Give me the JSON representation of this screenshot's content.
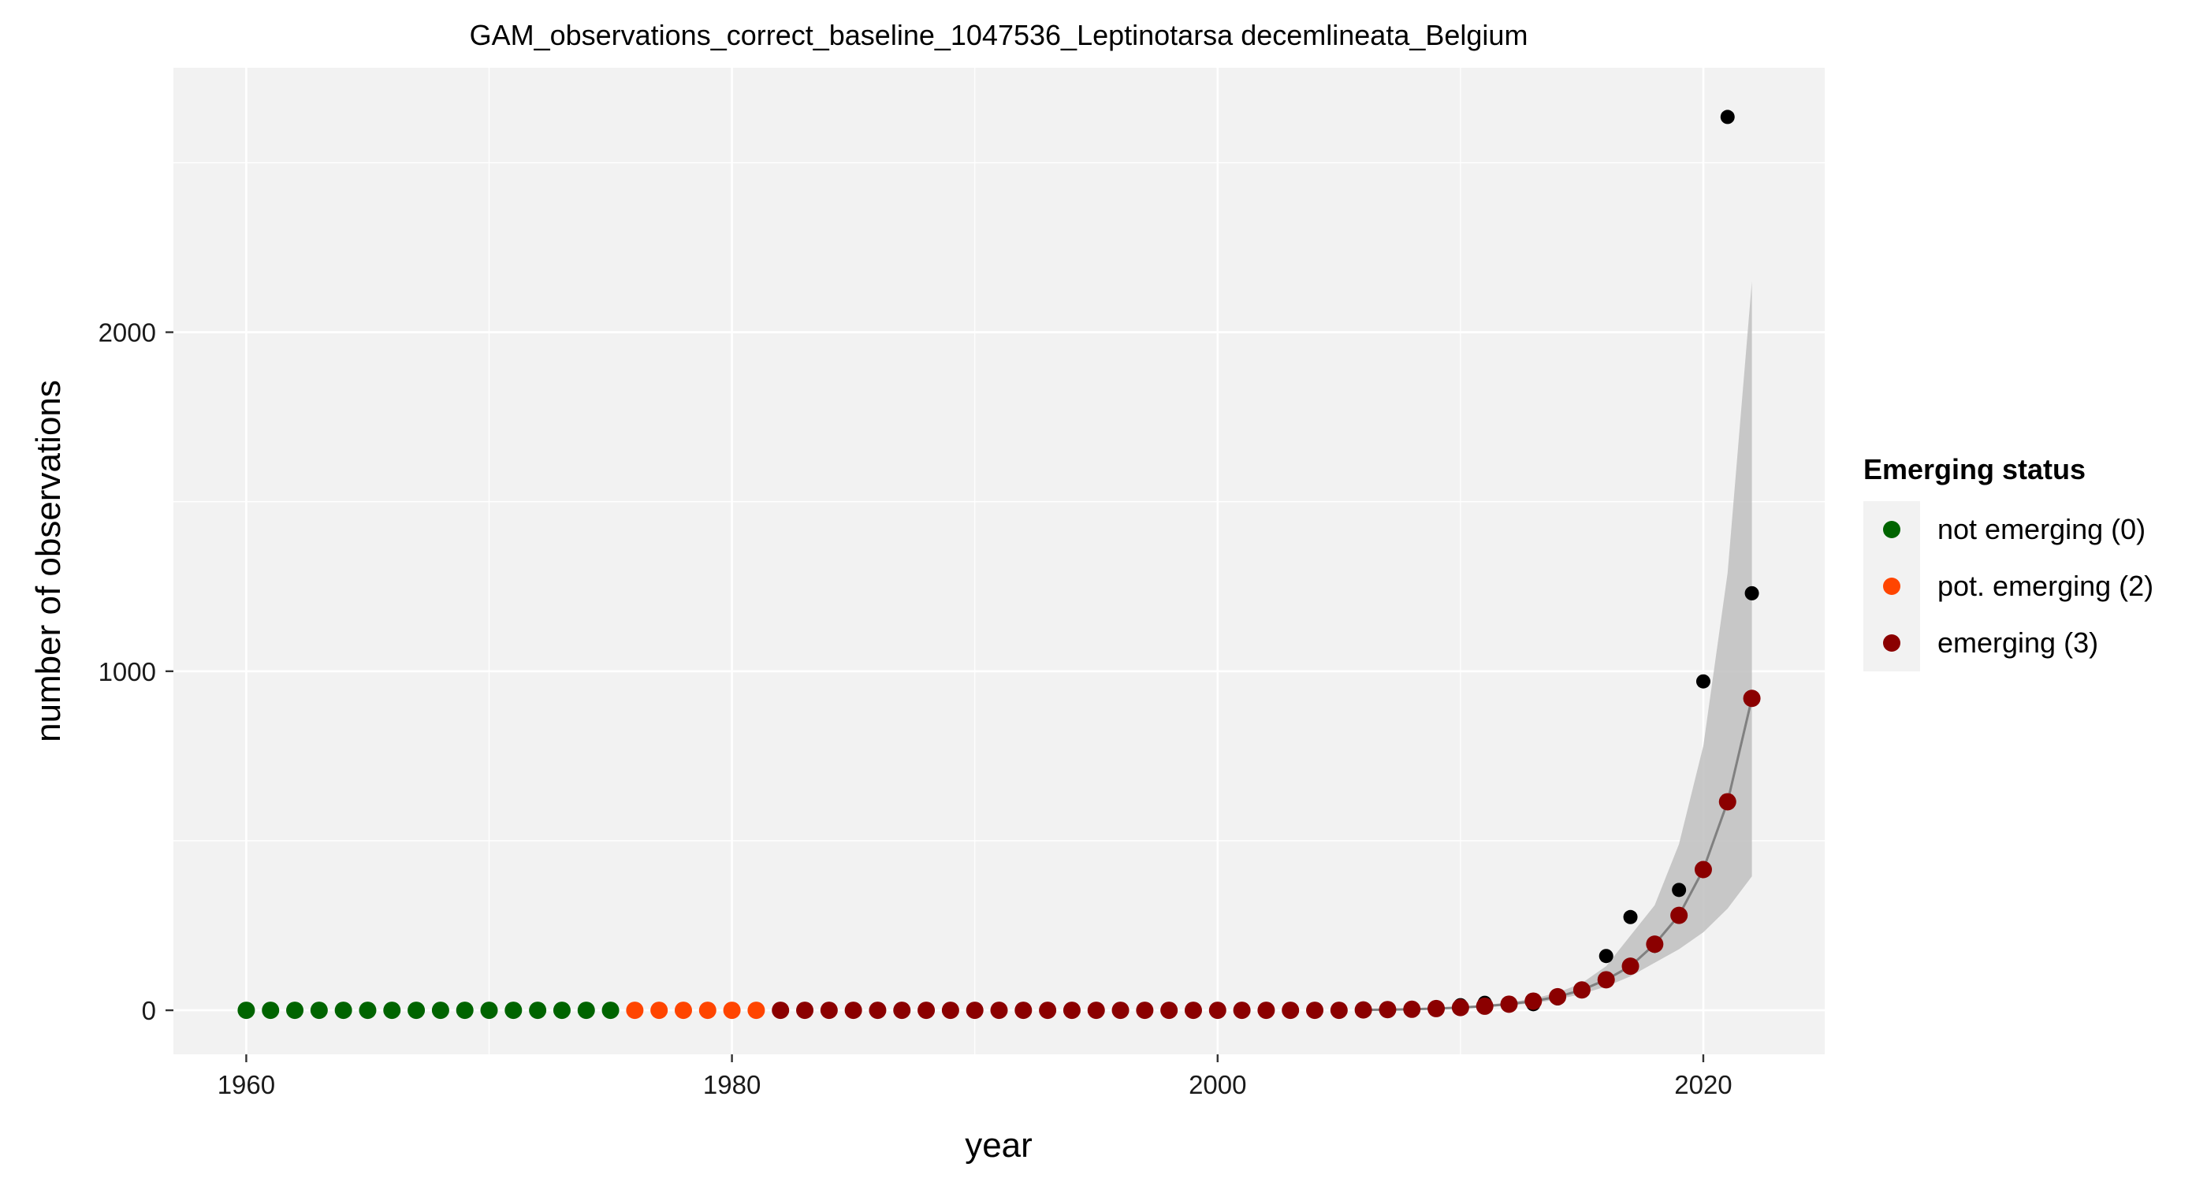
{
  "chart_data": {
    "type": "scatter",
    "title": "GAM_observations_correct_baseline_1047536_Leptinotarsa decemlineata_Belgium",
    "xlabel": "year",
    "ylabel": "number of observations",
    "xlim": [
      1957,
      2025
    ],
    "ylim": [
      -130,
      2780
    ],
    "x_ticks": [
      1960,
      1980,
      2000,
      2020
    ],
    "x_tick_labels": [
      "1960",
      "1980",
      "2000",
      "2020"
    ],
    "y_ticks": [
      0,
      1000,
      2000
    ],
    "y_tick_labels": [
      "0",
      "1000",
      "2000"
    ],
    "grid": true,
    "legend": {
      "title": "Emerging status",
      "placement": "right",
      "entries": [
        {
          "label": "not emerging (0)",
          "color": "#006400"
        },
        {
          "label": "pot. emerging (2)",
          "color": "#FF4500"
        },
        {
          "label": "emerging (3)",
          "color": "#8B0000"
        }
      ]
    },
    "colors": {
      "panel_background": "#F2F2F2",
      "grid": "#FFFFFF",
      "observation_point": "#000000",
      "fit_line": "#808080",
      "confidence_band": "#BFBFBF"
    },
    "observations": [
      {
        "x": 1960,
        "y": 0
      },
      {
        "x": 1961,
        "y": 0
      },
      {
        "x": 1962,
        "y": 0
      },
      {
        "x": 1963,
        "y": 0
      },
      {
        "x": 1964,
        "y": 0
      },
      {
        "x": 1965,
        "y": 0
      },
      {
        "x": 1966,
        "y": 0
      },
      {
        "x": 1967,
        "y": 0
      },
      {
        "x": 1968,
        "y": 0
      },
      {
        "x": 1969,
        "y": 0
      },
      {
        "x": 1970,
        "y": 0
      },
      {
        "x": 1971,
        "y": 0
      },
      {
        "x": 1972,
        "y": 0
      },
      {
        "x": 1973,
        "y": 0
      },
      {
        "x": 1974,
        "y": 0
      },
      {
        "x": 1975,
        "y": 0
      },
      {
        "x": 1976,
        "y": 0
      },
      {
        "x": 1977,
        "y": 0
      },
      {
        "x": 1978,
        "y": 0
      },
      {
        "x": 1979,
        "y": 0
      },
      {
        "x": 1980,
        "y": 0
      },
      {
        "x": 1981,
        "y": 0
      },
      {
        "x": 1982,
        "y": 0
      },
      {
        "x": 1983,
        "y": 0
      },
      {
        "x": 1984,
        "y": 0
      },
      {
        "x": 1985,
        "y": 0
      },
      {
        "x": 1986,
        "y": 0
      },
      {
        "x": 1987,
        "y": 0
      },
      {
        "x": 1988,
        "y": 0
      },
      {
        "x": 1989,
        "y": 0
      },
      {
        "x": 1990,
        "y": 0
      },
      {
        "x": 1991,
        "y": 0
      },
      {
        "x": 1992,
        "y": 0
      },
      {
        "x": 1993,
        "y": 0
      },
      {
        "x": 1994,
        "y": 0
      },
      {
        "x": 1995,
        "y": 0
      },
      {
        "x": 1996,
        "y": 0
      },
      {
        "x": 1997,
        "y": 0
      },
      {
        "x": 1998,
        "y": 0
      },
      {
        "x": 1999,
        "y": 0
      },
      {
        "x": 2000,
        "y": 0
      },
      {
        "x": 2001,
        "y": 0
      },
      {
        "x": 2002,
        "y": 0
      },
      {
        "x": 2003,
        "y": 0
      },
      {
        "x": 2004,
        "y": 0
      },
      {
        "x": 2005,
        "y": 0
      },
      {
        "x": 2006,
        "y": 0
      },
      {
        "x": 2007,
        "y": 0
      },
      {
        "x": 2008,
        "y": 0
      },
      {
        "x": 2009,
        "y": 3
      },
      {
        "x": 2010,
        "y": 15
      },
      {
        "x": 2011,
        "y": 22
      },
      {
        "x": 2012,
        "y": 20
      },
      {
        "x": 2013,
        "y": 18
      },
      {
        "x": 2014,
        "y": 35
      },
      {
        "x": 2015,
        "y": 60
      },
      {
        "x": 2016,
        "y": 160
      },
      {
        "x": 2017,
        "y": 275
      },
      {
        "x": 2018,
        "y": 190
      },
      {
        "x": 2019,
        "y": 355
      },
      {
        "x": 2020,
        "y": 970
      },
      {
        "x": 2021,
        "y": 2635
      },
      {
        "x": 2022,
        "y": 1230
      }
    ],
    "status_points": [
      {
        "x": 1960,
        "y": 0,
        "status": 0
      },
      {
        "x": 1961,
        "y": 0,
        "status": 0
      },
      {
        "x": 1962,
        "y": 0,
        "status": 0
      },
      {
        "x": 1963,
        "y": 0,
        "status": 0
      },
      {
        "x": 1964,
        "y": 0,
        "status": 0
      },
      {
        "x": 1965,
        "y": 0,
        "status": 0
      },
      {
        "x": 1966,
        "y": 0,
        "status": 0
      },
      {
        "x": 1967,
        "y": 0,
        "status": 0
      },
      {
        "x": 1968,
        "y": 0,
        "status": 0
      },
      {
        "x": 1969,
        "y": 0,
        "status": 0
      },
      {
        "x": 1970,
        "y": 0,
        "status": 0
      },
      {
        "x": 1971,
        "y": 0,
        "status": 0
      },
      {
        "x": 1972,
        "y": 0,
        "status": 0
      },
      {
        "x": 1973,
        "y": 0,
        "status": 0
      },
      {
        "x": 1974,
        "y": 0,
        "status": 0
      },
      {
        "x": 1975,
        "y": 0,
        "status": 0
      },
      {
        "x": 1976,
        "y": 0,
        "status": 2
      },
      {
        "x": 1977,
        "y": 0,
        "status": 2
      },
      {
        "x": 1978,
        "y": 0,
        "status": 2
      },
      {
        "x": 1979,
        "y": 0,
        "status": 2
      },
      {
        "x": 1980,
        "y": 0,
        "status": 2
      },
      {
        "x": 1981,
        "y": 0,
        "status": 2
      },
      {
        "x": 1982,
        "y": 0,
        "status": 3
      },
      {
        "x": 1983,
        "y": 0,
        "status": 3
      },
      {
        "x": 1984,
        "y": 0,
        "status": 3
      },
      {
        "x": 1985,
        "y": 0,
        "status": 3
      },
      {
        "x": 1986,
        "y": 0,
        "status": 3
      },
      {
        "x": 1987,
        "y": 0,
        "status": 3
      },
      {
        "x": 1988,
        "y": 0,
        "status": 3
      },
      {
        "x": 1989,
        "y": 0,
        "status": 3
      },
      {
        "x": 1990,
        "y": 0,
        "status": 3
      },
      {
        "x": 1991,
        "y": 0,
        "status": 3
      },
      {
        "x": 1992,
        "y": 0,
        "status": 3
      },
      {
        "x": 1993,
        "y": 0,
        "status": 3
      },
      {
        "x": 1994,
        "y": 0,
        "status": 3
      },
      {
        "x": 1995,
        "y": 0,
        "status": 3
      },
      {
        "x": 1996,
        "y": 0,
        "status": 3
      },
      {
        "x": 1997,
        "y": 0,
        "status": 3
      },
      {
        "x": 1998,
        "y": 0,
        "status": 3
      },
      {
        "x": 1999,
        "y": 0,
        "status": 3
      },
      {
        "x": 2000,
        "y": 0,
        "status": 3
      },
      {
        "x": 2001,
        "y": 0,
        "status": 3
      },
      {
        "x": 2002,
        "y": 0,
        "status": 3
      },
      {
        "x": 2003,
        "y": 0,
        "status": 3
      },
      {
        "x": 2004,
        "y": 0,
        "status": 3
      },
      {
        "x": 2005,
        "y": 0,
        "status": 3
      },
      {
        "x": 2006,
        "y": 1,
        "status": 3
      },
      {
        "x": 2007,
        "y": 2,
        "status": 3
      },
      {
        "x": 2008,
        "y": 3,
        "status": 3
      },
      {
        "x": 2009,
        "y": 5,
        "status": 3
      },
      {
        "x": 2010,
        "y": 8,
        "status": 3
      },
      {
        "x": 2011,
        "y": 12,
        "status": 3
      },
      {
        "x": 2012,
        "y": 18,
        "status": 3
      },
      {
        "x": 2013,
        "y": 27,
        "status": 3
      },
      {
        "x": 2014,
        "y": 40,
        "status": 3
      },
      {
        "x": 2015,
        "y": 60,
        "status": 3
      },
      {
        "x": 2016,
        "y": 90,
        "status": 3
      },
      {
        "x": 2017,
        "y": 130,
        "status": 3
      },
      {
        "x": 2018,
        "y": 195,
        "status": 3
      },
      {
        "x": 2019,
        "y": 280,
        "status": 3
      },
      {
        "x": 2020,
        "y": 415,
        "status": 3
      },
      {
        "x": 2021,
        "y": 615,
        "status": 3
      },
      {
        "x": 2022,
        "y": 920,
        "status": 3
      }
    ],
    "fit": {
      "x": [
        2006,
        2007,
        2008,
        2009,
        2010,
        2011,
        2012,
        2013,
        2014,
        2015,
        2016,
        2017,
        2018,
        2019,
        2020,
        2021,
        2022
      ],
      "y": [
        1,
        2,
        3,
        5,
        8,
        12,
        18,
        27,
        40,
        60,
        90,
        130,
        195,
        280,
        415,
        615,
        920
      ],
      "lower": [
        0,
        1,
        2,
        3,
        5,
        9,
        14,
        21,
        32,
        48,
        70,
        100,
        140,
        180,
        230,
        300,
        395
      ],
      "upper": [
        2,
        3,
        5,
        7,
        11,
        16,
        23,
        34,
        52,
        80,
        130,
        220,
        310,
        490,
        780,
        1290,
        2150
      ]
    }
  }
}
